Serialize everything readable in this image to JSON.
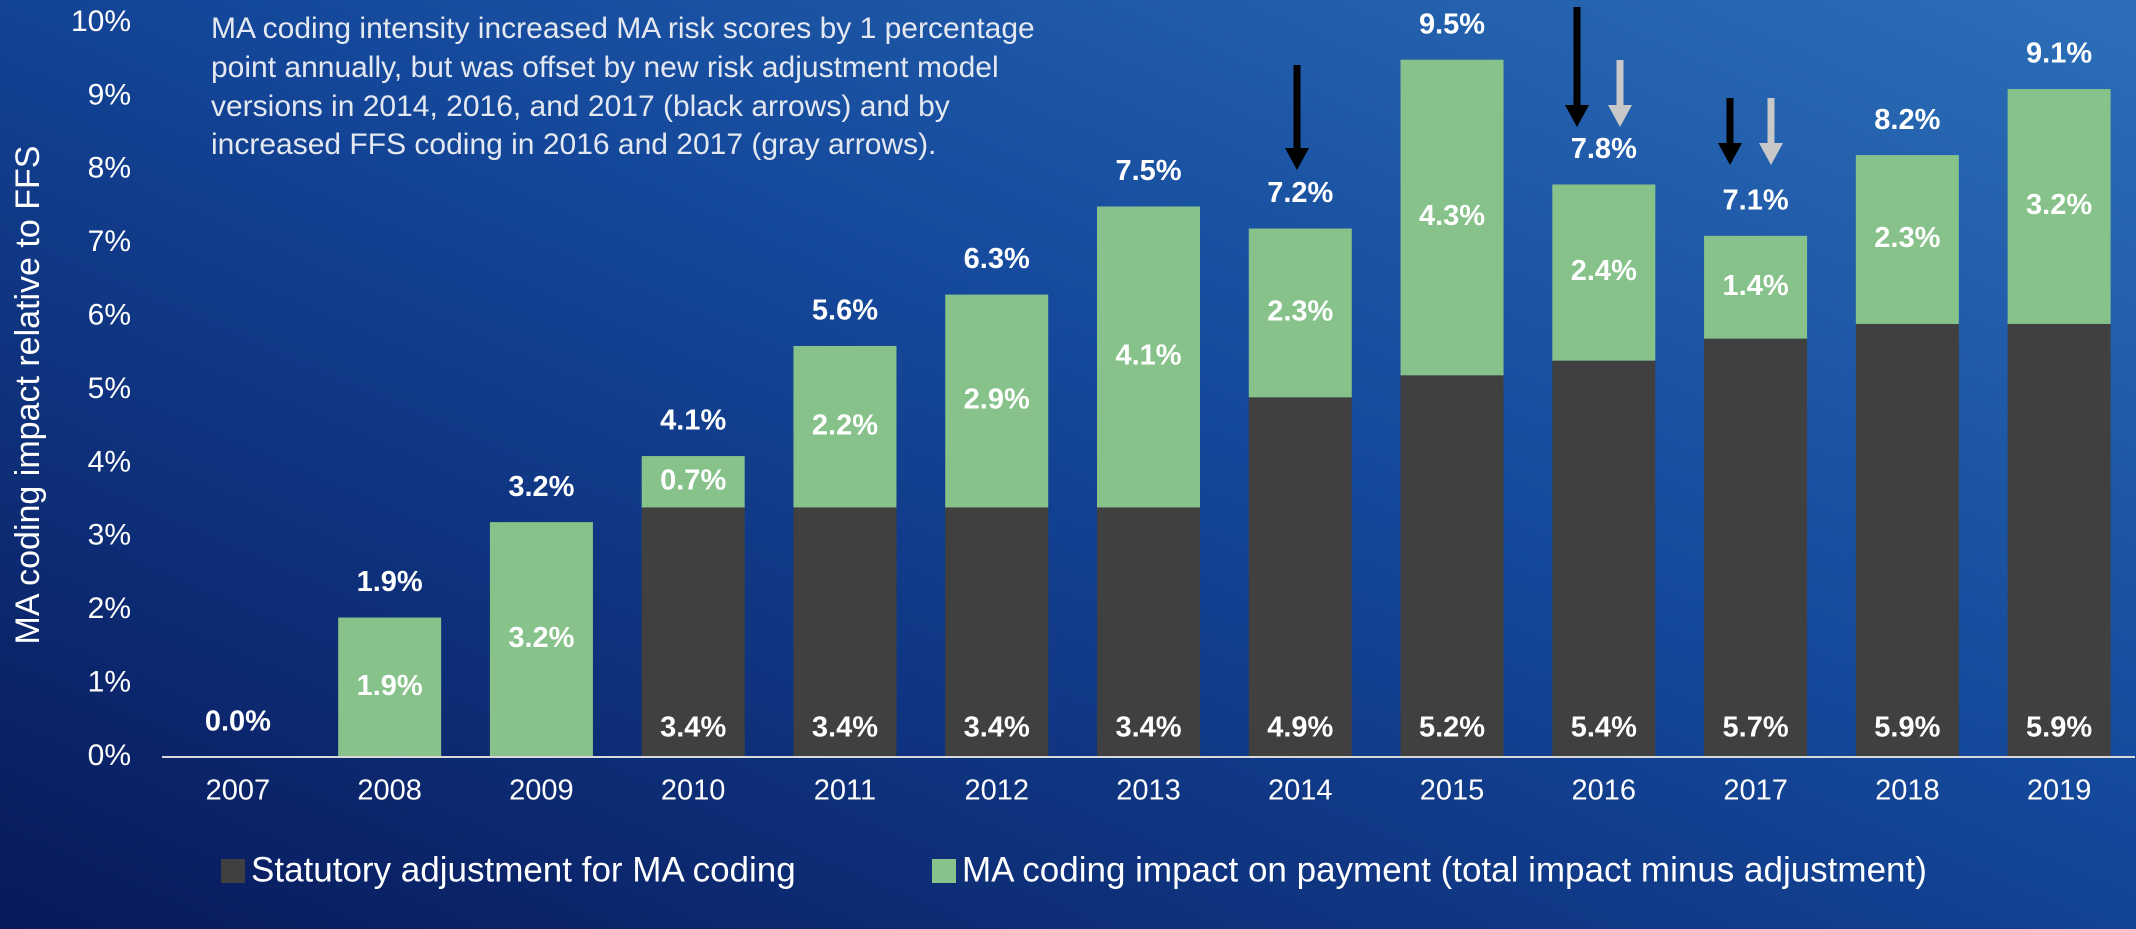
{
  "chart_data": {
    "type": "stacked-bar",
    "annotation": [
      "MA coding intensity increased MA risk scores by 1 percentage",
      "point annually, but was offset by new risk adjustment model",
      "versions in 2014, 2016, and 2017 (black arrows) and by",
      "increased FFS coding in 2016 and 2017 (gray arrows)."
    ],
    "y_axis_label": "MA coding  impact relative to FFS",
    "categories": [
      "2007",
      "2008",
      "2009",
      "2010",
      "2011",
      "2012",
      "2013",
      "2014",
      "2015",
      "2016",
      "2017",
      "2018",
      "2019"
    ],
    "series": [
      {
        "name": "Statutory adjustment for MA coding",
        "color": "#404040",
        "values": [
          null,
          null,
          null,
          3.4,
          3.4,
          3.4,
          3.4,
          4.9,
          5.2,
          5.4,
          5.7,
          5.9,
          5.9
        ],
        "value_labels": [
          null,
          null,
          null,
          "3.4%",
          "3.4%",
          "3.4%",
          "3.4%",
          "4.9%",
          "5.2%",
          "5.4%",
          "5.7%",
          "5.9%",
          "5.9%"
        ]
      },
      {
        "name": "MA coding impact on payment (total impact minus adjustment)",
        "color": "#86c28a",
        "values": [
          null,
          1.9,
          3.2,
          0.7,
          2.2,
          2.9,
          4.1,
          2.3,
          4.3,
          2.4,
          1.4,
          2.3,
          3.2
        ],
        "value_labels": [
          null,
          "1.9%",
          "3.2%",
          "0.7%",
          "2.2%",
          "2.9%",
          "4.1%",
          "2.3%",
          "4.3%",
          "2.4%",
          "1.4%",
          "2.3%",
          "3.2%"
        ]
      }
    ],
    "totals": {
      "values": [
        0.0,
        1.9,
        3.2,
        4.1,
        5.6,
        6.3,
        7.5,
        7.2,
        9.5,
        7.8,
        7.1,
        8.2,
        9.1
      ],
      "value_labels": [
        "0.0%",
        "1.9%",
        "3.2%",
        "4.1%",
        "5.6%",
        "6.3%",
        "7.5%",
        "7.2%",
        "9.5%",
        "7.8%",
        "7.1%",
        "8.2%",
        "9.1%"
      ]
    },
    "ylim": [
      0,
      10
    ],
    "yticks": [
      {
        "value": 0,
        "label": "0%"
      },
      {
        "value": 1,
        "label": "1%"
      },
      {
        "value": 2,
        "label": "2%"
      },
      {
        "value": 3,
        "label": "3%"
      },
      {
        "value": 4,
        "label": "4%"
      },
      {
        "value": 5,
        "label": "5%"
      },
      {
        "value": 6,
        "label": "6%"
      },
      {
        "value": 7,
        "label": "7%"
      },
      {
        "value": 8,
        "label": "8%"
      },
      {
        "value": 9,
        "label": "9%"
      },
      {
        "value": 10,
        "label": "10%"
      }
    ],
    "grid": false,
    "legend": "bottom"
  }
}
